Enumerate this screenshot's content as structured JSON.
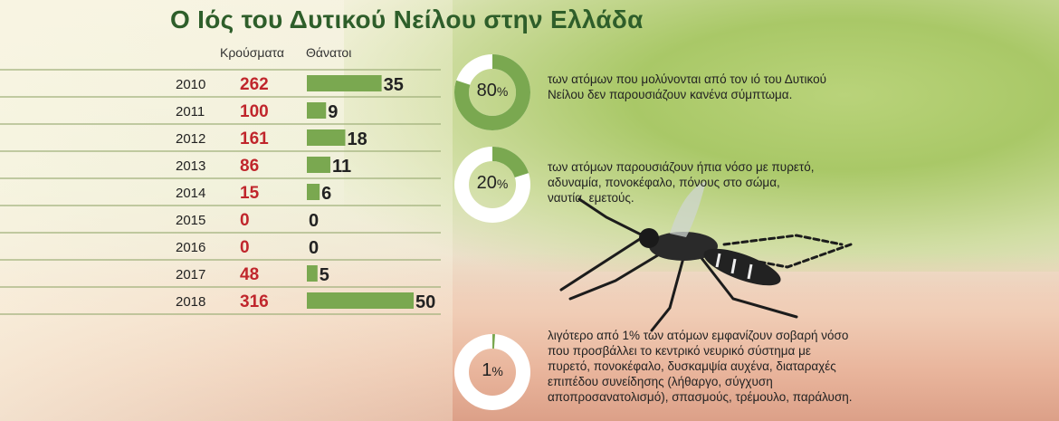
{
  "title": "Ο Ιός του Δυτικού Νείλου στην Ελλάδα",
  "chart_data": {
    "type": "table",
    "columns": [
      "Κρούσματα",
      "Θάνατοι"
    ],
    "years": [
      "2010",
      "2011",
      "2012",
      "2013",
      "2014",
      "2015",
      "2016",
      "2017",
      "2018"
    ],
    "cases": [
      262,
      100,
      161,
      86,
      15,
      0,
      0,
      48,
      316
    ],
    "deaths": [
      35,
      9,
      18,
      11,
      6,
      0,
      0,
      5,
      50
    ],
    "deaths_bar_max": 50
  },
  "stats": [
    {
      "value": 80,
      "label": "80",
      "unit": "%",
      "text_lines": [
        "των ατόμων που μολύνονται από τον ιό του Δυτικού",
        "Νείλου δεν παρουσιάζουν κανένα σύμπτωμα."
      ]
    },
    {
      "value": 20,
      "label": "20",
      "unit": "%",
      "text_lines": [
        "των ατόμων παρουσιάζουν ήπια νόσο με πυρετό,",
        "αδυναμία, πονοκέφαλο, πόνους στο σώμα,",
        "ναυτία, εμετούς."
      ]
    },
    {
      "value": 1,
      "label": "1",
      "unit": "%",
      "text_lines": [
        "λιγότερο από 1% των ατόμων εμφανίζουν σοβαρή νόσο",
        "που προσβάλλει το κεντρικό νευρικό σύστημα με",
        "πυρετό, πονοκέφαλο, δυσκαμψία αυχένα, διαταραχές",
        "επιπέδου συνείδησης (λήθαργο, σύγχυση",
        "αποπροσανατολισμό), σπασμούς, τρέμουλο, παράλυση."
      ]
    }
  ],
  "colors": {
    "green": "#7aa850",
    "donut_track": "#ffffff",
    "cases": "#c0262c",
    "title": "#2e5e2a"
  }
}
